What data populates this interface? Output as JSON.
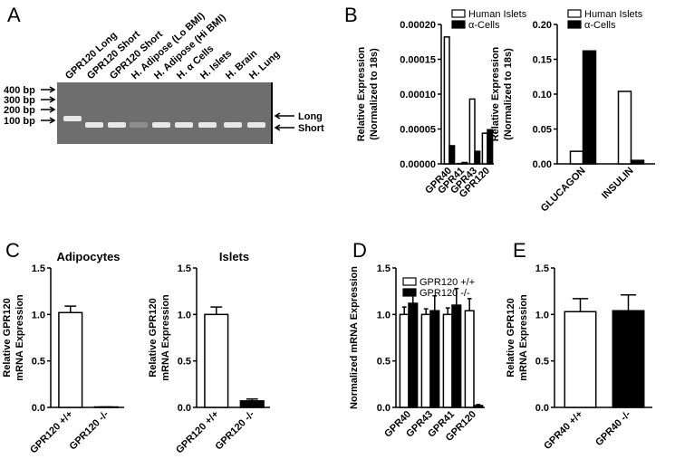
{
  "panels": [
    "A",
    "B",
    "C",
    "D",
    "E"
  ],
  "gel": {
    "lanes": [
      "GPR120 Long",
      "GPR120 Short",
      "GPR120 Short",
      "H. Adipose  (Lo BMI)",
      "H. Adipose (Hi BMI)",
      "H. α Cells",
      "H. Islets",
      "H. Brain",
      "H. Lung"
    ],
    "markers": [
      "400 bp",
      "300 bp",
      "200 bp",
      "100 bp"
    ],
    "bands": [
      "Long",
      "Short"
    ]
  },
  "chart_data": [
    {
      "type": "bar",
      "ylabel": [
        "Relative Expression",
        "(Normalized to 18s)"
      ],
      "categories": [
        "GPR40",
        "GPR41",
        "GPR43",
        "GPR120"
      ],
      "series": [
        {
          "name": "Human Islets",
          "color": "#ffffff",
          "values": [
            0.000182,
            5e-07,
            9.3e-05,
            4.4e-05
          ]
        },
        {
          "name": "α-Cells",
          "color": "#000000",
          "values": [
            2.6e-05,
            2e-06,
            1.8e-05,
            4.9e-05
          ]
        }
      ],
      "ylim": [
        0,
        0.0002
      ],
      "yticks": [
        {
          "value": 0,
          "label": "0.00000"
        },
        {
          "value": 5e-05,
          "label": "0.00005"
        },
        {
          "value": 0.0001,
          "label": "0.00010"
        },
        {
          "value": 0.00015,
          "label": "0.00015"
        },
        {
          "value": 0.0002,
          "label": "0.00020"
        }
      ],
      "legend": "upper-right"
    },
    {
      "type": "bar",
      "ylabel": [
        "Relative Expression",
        "(Normalized to 18s)"
      ],
      "categories": [
        "GLUCAGON",
        "INSULIN"
      ],
      "series": [
        {
          "name": "Human Islets",
          "color": "#ffffff",
          "values": [
            0.018,
            0.104
          ]
        },
        {
          "name": "α-Cells",
          "color": "#000000",
          "values": [
            0.162,
            0.005
          ]
        }
      ],
      "ylim": [
        0,
        0.2
      ],
      "yticks": [
        {
          "value": 0,
          "label": "0.00"
        },
        {
          "value": 0.05,
          "label": "0.05"
        },
        {
          "value": 0.1,
          "label": "0.10"
        },
        {
          "value": 0.15,
          "label": "0.15"
        },
        {
          "value": 0.2,
          "label": "0.20"
        }
      ],
      "legend": "upper-right"
    },
    {
      "type": "bar",
      "title": "Adipocytes",
      "ylabel": [
        "Relative GPR120",
        "mRNA Expression"
      ],
      "categories": [
        "GPR120 +/+",
        "GPR120 -/-"
      ],
      "values": [
        1.02,
        0.005
      ],
      "errors": [
        0.07,
        0
      ],
      "colors": [
        "#ffffff",
        "#000000"
      ],
      "ylim": [
        0,
        1.5
      ],
      "yticks": [
        {
          "value": 0,
          "label": "0.0"
        },
        {
          "value": 0.5,
          "label": "0.5"
        },
        {
          "value": 1,
          "label": "1.0"
        },
        {
          "value": 1.5,
          "label": "1.5"
        }
      ]
    },
    {
      "type": "bar",
      "title": "Islets",
      "ylabel": [
        "Relative GPR120",
        "mRNA Expression"
      ],
      "categories": [
        "GPR120 +/+",
        "GPR120 -/-"
      ],
      "values": [
        1.0,
        0.07
      ],
      "errors": [
        0.08,
        0.02
      ],
      "colors": [
        "#ffffff",
        "#000000"
      ],
      "ylim": [
        0,
        1.5
      ],
      "yticks": [
        {
          "value": 0,
          "label": "0.0"
        },
        {
          "value": 0.5,
          "label": "0.5"
        },
        {
          "value": 1,
          "label": "1.0"
        },
        {
          "value": 1.5,
          "label": "1.5"
        }
      ]
    },
    {
      "type": "bar",
      "ylabel": [
        "Normalized mRNA Expression"
      ],
      "categories": [
        "GPR40",
        "GPR43",
        "GPR41",
        "GPR120"
      ],
      "series": [
        {
          "name": "GPR120 +/+",
          "color": "#ffffff",
          "values": [
            1.0,
            1.0,
            1.0,
            1.04
          ],
          "errors": [
            0.08,
            0.06,
            0.07,
            0.13
          ]
        },
        {
          "name": "GPR120 -/-",
          "color": "#000000",
          "values": [
            1.12,
            1.04,
            1.1,
            0.02
          ],
          "errors": [
            0.12,
            0.16,
            0.18,
            0.01
          ]
        }
      ],
      "ylim": [
        0,
        1.5
      ],
      "yticks": [
        {
          "value": 0,
          "label": "0.0"
        },
        {
          "value": 0.5,
          "label": "0.5"
        },
        {
          "value": 1,
          "label": "1.0"
        },
        {
          "value": 1.5,
          "label": "1.5"
        }
      ],
      "legend": "upper-left"
    },
    {
      "type": "bar",
      "ylabel": [
        "Relative GPR120",
        "mRNA Expression"
      ],
      "categories": [
        "GPR40 +/+",
        "GPR40 -/-"
      ],
      "values": [
        1.03,
        1.04
      ],
      "errors": [
        0.14,
        0.17
      ],
      "colors": [
        "#ffffff",
        "#000000"
      ],
      "ylim": [
        0,
        1.5
      ],
      "yticks": [
        {
          "value": 0,
          "label": "0.0"
        },
        {
          "value": 0.5,
          "label": "0.5"
        },
        {
          "value": 1,
          "label": "1.0"
        },
        {
          "value": 1.5,
          "label": "1.5"
        }
      ]
    }
  ]
}
